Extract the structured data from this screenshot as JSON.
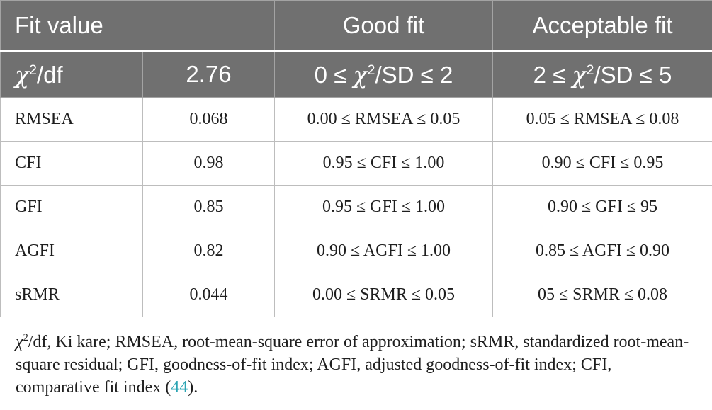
{
  "table": {
    "headers": [
      "Fit value",
      "Good fit",
      "Acceptable fit"
    ],
    "chi_row": {
      "label_symbol": "χ",
      "label_sup": "2",
      "label_suffix": "/df",
      "value": "2.76",
      "good_pre": "0 ≤ ",
      "good_symbol": "χ",
      "good_sup": "2",
      "good_post": "/SD ≤ 2",
      "acc_pre": "2 ≤ ",
      "acc_symbol": "χ",
      "acc_sup": "2",
      "acc_post": "/SD ≤ 5"
    },
    "rows": [
      [
        "RMSEA",
        "0.068",
        "0.00 ≤ RMSEA ≤ 0.05",
        "0.05 ≤ RMSEA ≤ 0.08"
      ],
      [
        "CFI",
        "0.98",
        "0.95 ≤ CFI ≤ 1.00",
        "0.90 ≤ CFI ≤ 0.95"
      ],
      [
        "GFI",
        "0.85",
        "0.95 ≤ GFI ≤ 1.00",
        "0.90 ≤ GFI ≤ 95"
      ],
      [
        "AGFI",
        "0.82",
        "0.90 ≤ AGFI ≤ 1.00",
        "0.85 ≤ AGFI ≤ 0.90"
      ],
      [
        "sRMR",
        "0.044",
        "0.00 ≤ SRMR ≤ 0.05",
        "05 ≤ SRMR ≤ 0.08"
      ]
    ]
  },
  "note": {
    "symbol": "χ",
    "sup": "2",
    "text": "/df, Ki kare; RMSEA, root-mean-square error of approximation; sRMR, standardized root-mean-square residual; GFI, goodness-of-fit index; AGFI, adjusted goodness-of-fit index; CFI, comparative fit index (",
    "ref": "44",
    "tail": ")."
  }
}
